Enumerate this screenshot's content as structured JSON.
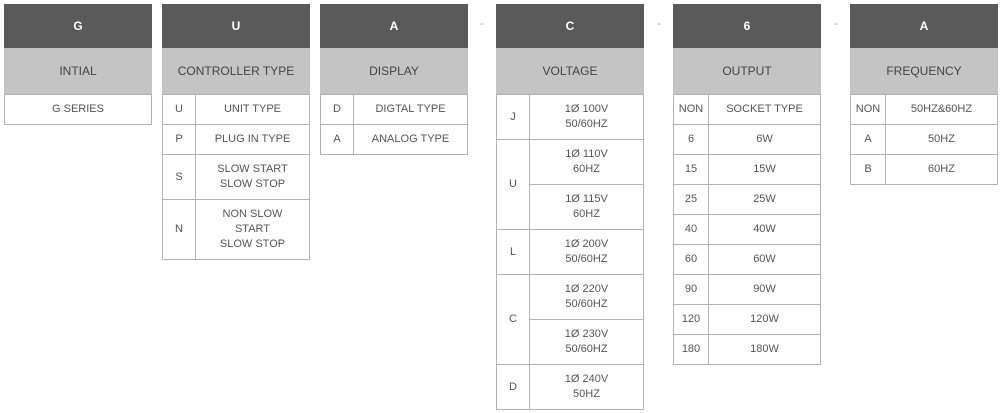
{
  "separator": "-",
  "g": {
    "code": "G",
    "title": "INTIAL",
    "value": "G SERIES"
  },
  "u": {
    "code": "U",
    "title": "CONTROLLER TYPE",
    "rows": [
      {
        "key": "U",
        "label": "UNIT TYPE"
      },
      {
        "key": "P",
        "label": "PLUG IN TYPE"
      },
      {
        "key": "S",
        "label": "SLOW START SLOW STOP"
      },
      {
        "key": "N",
        "label": "NON SLOW START SLOW STOP"
      }
    ]
  },
  "a": {
    "code": "A",
    "title": "DISPLAY",
    "rows": [
      {
        "key": "D",
        "label": "DIGTAL TYPE"
      },
      {
        "key": "A",
        "label": "ANALOG TYPE"
      }
    ]
  },
  "c": {
    "code": "C",
    "title": "VOLTAGE",
    "groups": [
      {
        "key": "J",
        "values": [
          "1Ø 100V 50/60HZ"
        ]
      },
      {
        "key": "U",
        "values": [
          "1Ø 110V 60HZ",
          "1Ø 115V 60HZ"
        ]
      },
      {
        "key": "L",
        "values": [
          "1Ø 200V 50/60HZ"
        ]
      },
      {
        "key": "C",
        "values": [
          "1Ø 220V 50/60HZ",
          "1Ø 230V 50/60HZ"
        ]
      },
      {
        "key": "D",
        "values": [
          "1Ø 240V 50HZ"
        ]
      }
    ]
  },
  "six": {
    "code": "6",
    "title": "OUTPUT",
    "rows": [
      {
        "key": "NON",
        "label": "SOCKET TYPE"
      },
      {
        "key": "6",
        "label": "6W"
      },
      {
        "key": "15",
        "label": "15W"
      },
      {
        "key": "25",
        "label": "25W"
      },
      {
        "key": "40",
        "label": "40W"
      },
      {
        "key": "60",
        "label": "60W"
      },
      {
        "key": "90",
        "label": "90W"
      },
      {
        "key": "120",
        "label": "120W"
      },
      {
        "key": "180",
        "label": "180W"
      }
    ]
  },
  "f": {
    "code": "A",
    "title": "FREQUENCY",
    "rows": [
      {
        "key": "NON",
        "label": "50HZ&60HZ"
      },
      {
        "key": "A",
        "label": "50HZ"
      },
      {
        "key": "B",
        "label": "60HZ"
      }
    ]
  }
}
